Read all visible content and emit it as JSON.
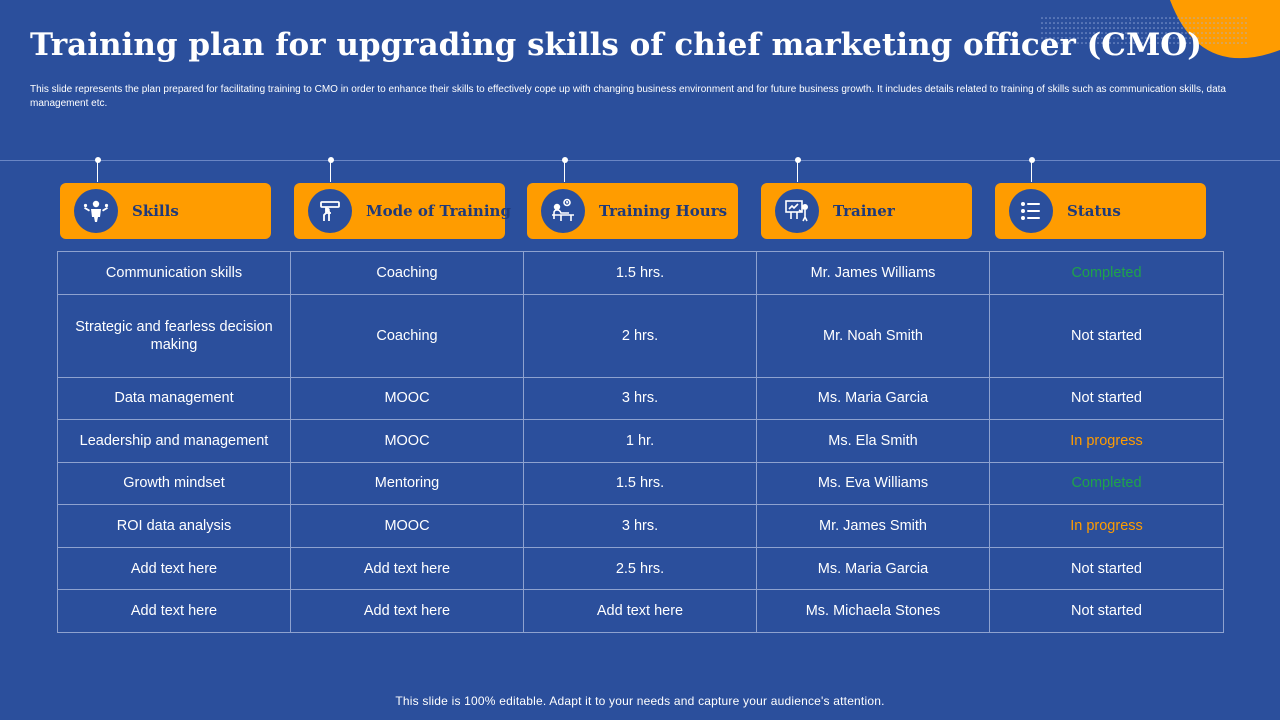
{
  "slide": {
    "title": "Training plan for upgrading skills of chief marketing officer (CMO)",
    "subtitle": "This slide represents the plan prepared for facilitating training to CMO  in order to enhance their skills to effectively cope up with changing business environment and for future business growth. It includes details related to training of skills such as communication skills, data management etc.",
    "footer": "This slide is 100% editable. Adapt it to your needs and capture your audience's attention."
  },
  "colors": {
    "background": "#2b4f9c",
    "accent_orange": "#ff9c00",
    "completed_green": "#1fa34a",
    "in_progress_orange": "#ff9c00"
  },
  "headers": [
    {
      "label": "Skills",
      "icon": "skills-person-icon"
    },
    {
      "label": "Mode of Training",
      "icon": "training-mode-icon"
    },
    {
      "label": "Training Hours",
      "icon": "training-hours-icon"
    },
    {
      "label": "Trainer",
      "icon": "trainer-presentation-icon"
    },
    {
      "label": "Status",
      "icon": "status-list-icon"
    }
  ],
  "rows": [
    {
      "skill": "Communication skills",
      "mode": "Coaching",
      "hours": "1.5 hrs.",
      "trainer": "Mr. James Williams",
      "status": "Completed",
      "status_type": "completed"
    },
    {
      "skill": "Strategic and fearless decision making",
      "mode": "Coaching",
      "hours": "2 hrs.",
      "trainer": "Mr. Noah Smith",
      "status": "Not started",
      "status_type": "not"
    },
    {
      "skill": "Data management",
      "mode": "MOOC",
      "hours": "3 hrs.",
      "trainer": "Ms. Maria Garcia",
      "status": "Not started",
      "status_type": "not"
    },
    {
      "skill": "Leadership and management",
      "mode": "MOOC",
      "hours": "1 hr.",
      "trainer": "Ms. Ela Smith",
      "status": "In progress",
      "status_type": "progress"
    },
    {
      "skill": "Growth mindset",
      "mode": "Mentoring",
      "hours": "1.5 hrs.",
      "trainer": "Ms. Eva Williams",
      "status": "Completed",
      "status_type": "completed"
    },
    {
      "skill": "ROI data analysis",
      "mode": "MOOC",
      "hours": "3 hrs.",
      "trainer": "Mr. James Smith",
      "status": "In progress",
      "status_type": "progress"
    },
    {
      "skill": "Add text here",
      "mode": "Add text here",
      "hours": "2.5 hrs.",
      "trainer": "Ms. Maria Garcia",
      "status": "Not started",
      "status_type": "not"
    },
    {
      "skill": "Add text here",
      "mode": "Add text here",
      "hours": "Add text here",
      "trainer": "Ms. Michaela Stones",
      "status": "Not started",
      "status_type": "not"
    }
  ]
}
